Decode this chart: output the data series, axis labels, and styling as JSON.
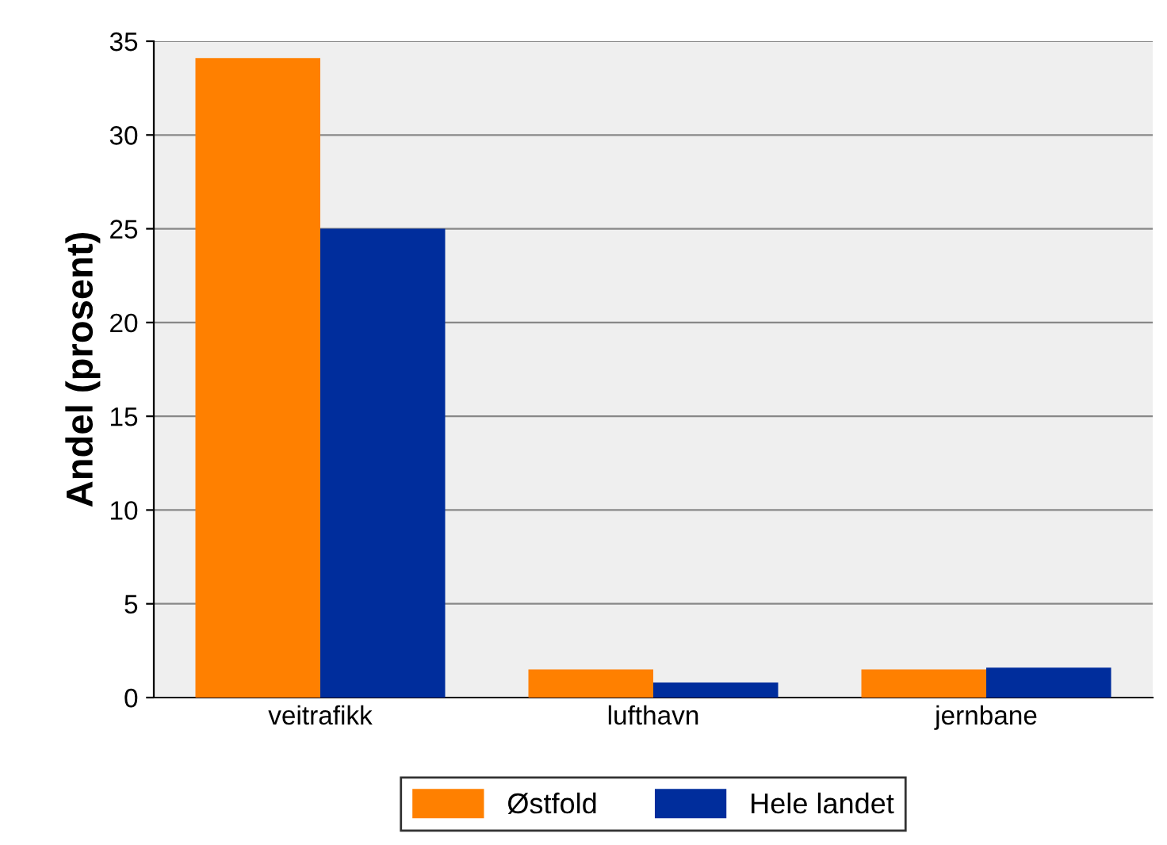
{
  "chart_data": {
    "type": "bar",
    "ylabel": "Andel (prosent)",
    "categories": [
      "veitrafikk",
      "lufthavn",
      "jernbane"
    ],
    "series": [
      {
        "name": "Østfold",
        "color": "#ff8000",
        "values": [
          34.1,
          1.5,
          1.5
        ]
      },
      {
        "name": "Hele landet",
        "color": "#002d9c",
        "values": [
          25.0,
          0.8,
          1.6
        ]
      }
    ],
    "ylim": [
      0,
      35
    ],
    "yticks": [
      0,
      5,
      10,
      15,
      20,
      25,
      30,
      35
    ],
    "grid": "y",
    "legend": "bottom"
  }
}
